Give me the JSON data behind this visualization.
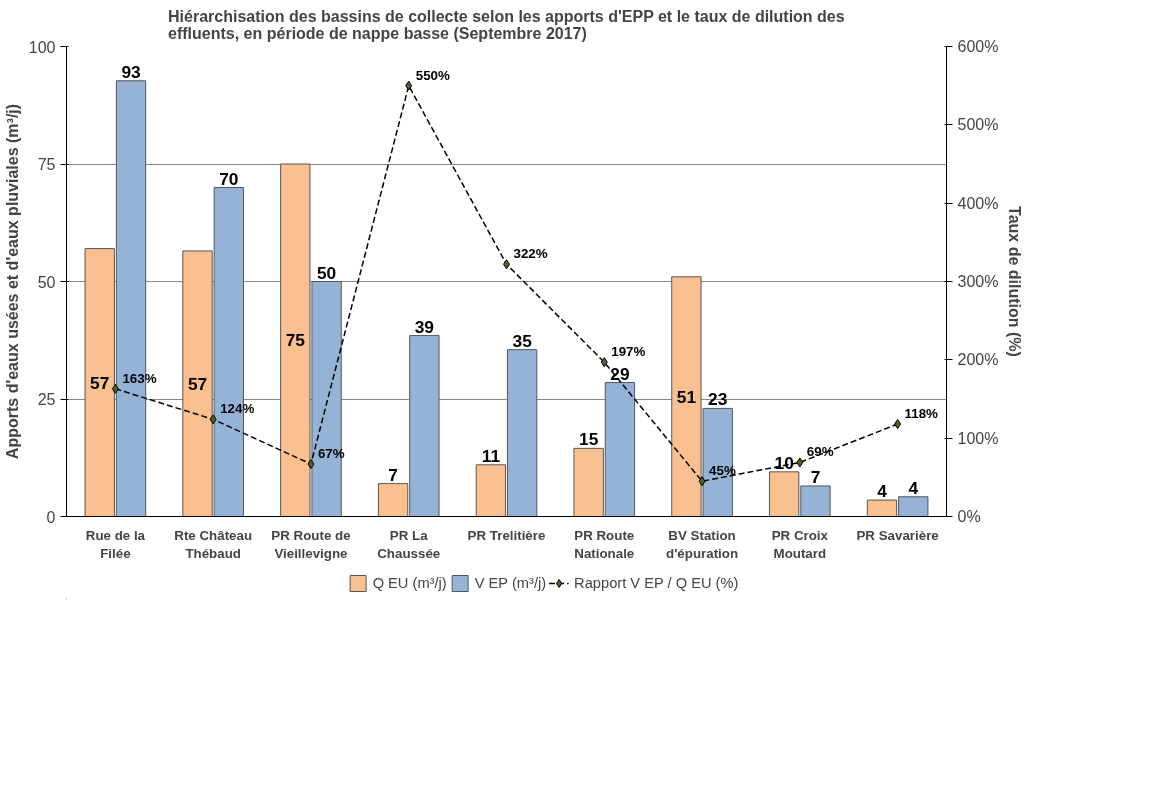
{
  "chart_data": {
    "type": "bar",
    "title": "Hiérarchisation des bassins de collecte selon les apports d'EPP et le taux de dilution des effluents, en période de nappe basse (Septembre 2017)",
    "ylabel": "Apports d'eaux usées et d'eaux pluviales (m³/j)",
    "y2label": "Taux de dilution (%)",
    "categories": [
      "Rue de la\nFilée",
      "Rte Château\nThébaud",
      "PR Route de\nVieillevigne",
      "PR La\nChaussée",
      "PR Trelitière",
      "PR Route\nNationale",
      "BV Station\nd'épuration",
      "PR Croix\nMoutard",
      "PR Savarière"
    ],
    "series": [
      {
        "name": "Q EU (m³/j)",
        "color": "#fac090",
        "values": [
          57,
          56.5,
          75,
          7,
          11,
          14.5,
          51,
          9.5,
          3.5
        ],
        "value_labels": [
          "57",
          "57",
          "75",
          "7",
          "11",
          "15",
          "51",
          "10",
          "4"
        ]
      },
      {
        "name": "V EP (m³/j)",
        "color": "#95b3d7",
        "values": [
          92.7,
          70,
          50,
          38.5,
          35.5,
          28.5,
          23,
          6.5,
          4.2
        ],
        "value_labels": [
          "93",
          "70",
          "50",
          "39",
          "35",
          "29",
          "23",
          "7",
          "4"
        ]
      },
      {
        "name": "Rapport V EP / Q EU (%)",
        "type": "line",
        "axis": "y2",
        "color": "#000000",
        "marker": "diamond",
        "line_style": "dashed",
        "values": [
          163,
          124,
          67,
          550,
          322,
          197,
          45,
          69,
          118
        ],
        "value_labels": [
          "163%",
          "124%",
          "67%",
          "550%",
          "322%",
          "197%",
          "45%",
          "69%",
          "118%"
        ]
      }
    ],
    "ylim": [
      0,
      100
    ],
    "yticks": [
      0,
      25,
      50,
      75,
      100
    ],
    "y2lim": [
      0,
      600
    ],
    "y2ticks": [
      {
        "value": 0,
        "label": "0%"
      },
      {
        "value": 100,
        "label": "100%"
      },
      {
        "value": 200,
        "label": "200%"
      },
      {
        "value": 300,
        "label": "300%"
      },
      {
        "value": 400,
        "label": "400%"
      },
      {
        "value": 500,
        "label": "500%"
      },
      {
        "value": 600,
        "label": "600%"
      }
    ],
    "grid": "y",
    "legend": "bottom"
  }
}
